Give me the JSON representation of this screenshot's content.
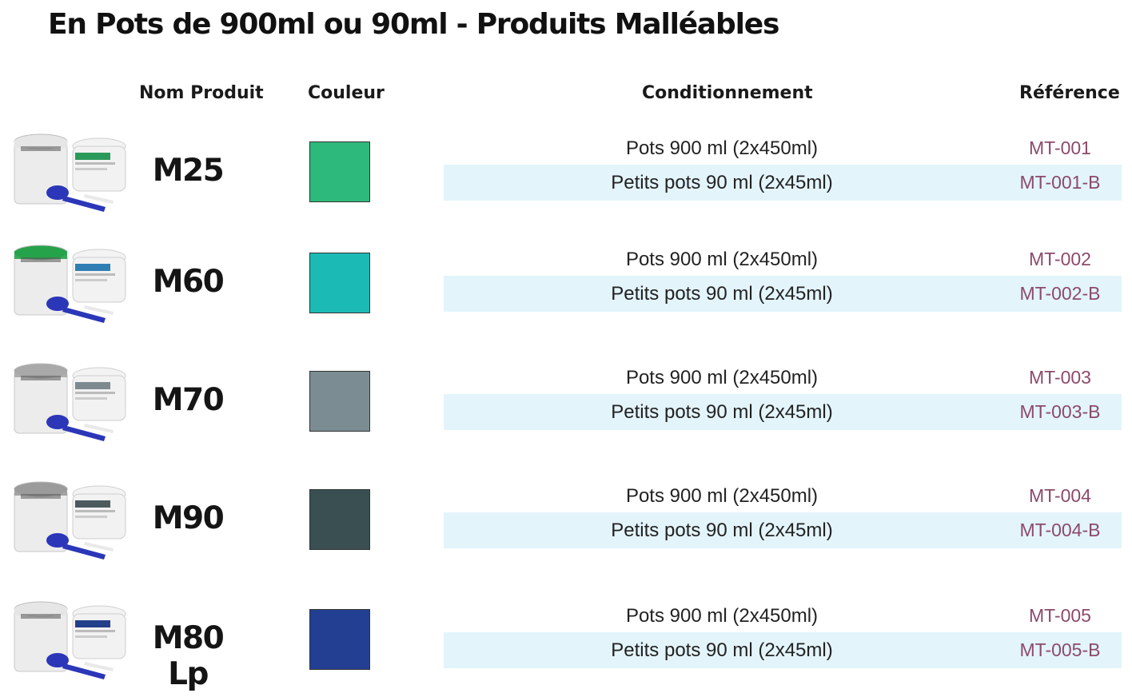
{
  "title": "En Pots de 900ml ou 90ml - Produits Malléables",
  "headers": {
    "product": "Nom Produit",
    "color": "Couleur",
    "packaging": "Conditionnement",
    "reference": "Référence"
  },
  "products": [
    {
      "name": "M25",
      "color": "#2db97c",
      "lid": "#e6e6e6",
      "tub_label_color": "#2a9a5a",
      "packs": [
        {
          "label": "Pots 900 ml (2x450ml)",
          "ref": "MT-001"
        },
        {
          "label": "Petits pots 90 ml (2x45ml)",
          "ref": "MT-001-B"
        }
      ]
    },
    {
      "name": "M60",
      "color": "#1cbab5",
      "lid": "#26a34a",
      "tub_label_color": "#2f7fb4",
      "packs": [
        {
          "label": "Pots 900 ml (2x450ml)",
          "ref": "MT-002"
        },
        {
          "label": "Petits pots 90 ml (2x45ml)",
          "ref": "MT-002-B"
        }
      ]
    },
    {
      "name": "M70",
      "color": "#7b8d92",
      "lid": "#a9a9a9",
      "tub_label_color": "#7d8a90",
      "packs": [
        {
          "label": "Pots 900 ml (2x450ml)",
          "ref": "MT-003"
        },
        {
          "label": "Petits pots 90 ml (2x45ml)",
          "ref": "MT-003-B"
        }
      ]
    },
    {
      "name": "M90",
      "color": "#3a4f51",
      "lid": "#9b9b9b",
      "tub_label_color": "#4c5a5e",
      "packs": [
        {
          "label": "Pots 900 ml (2x450ml)",
          "ref": "MT-004"
        },
        {
          "label": "Petits pots 90 ml (2x45ml)",
          "ref": "MT-004-B"
        }
      ]
    },
    {
      "name": "M80 Lp",
      "color": "#233f92",
      "lid": "#e6e6e6",
      "tub_label_color": "#243f8a",
      "packs": [
        {
          "label": "Pots 900 ml (2x450ml)",
          "ref": "MT-005"
        },
        {
          "label": "Petits pots 90 ml (2x45ml)",
          "ref": "MT-005-B"
        }
      ]
    }
  ]
}
